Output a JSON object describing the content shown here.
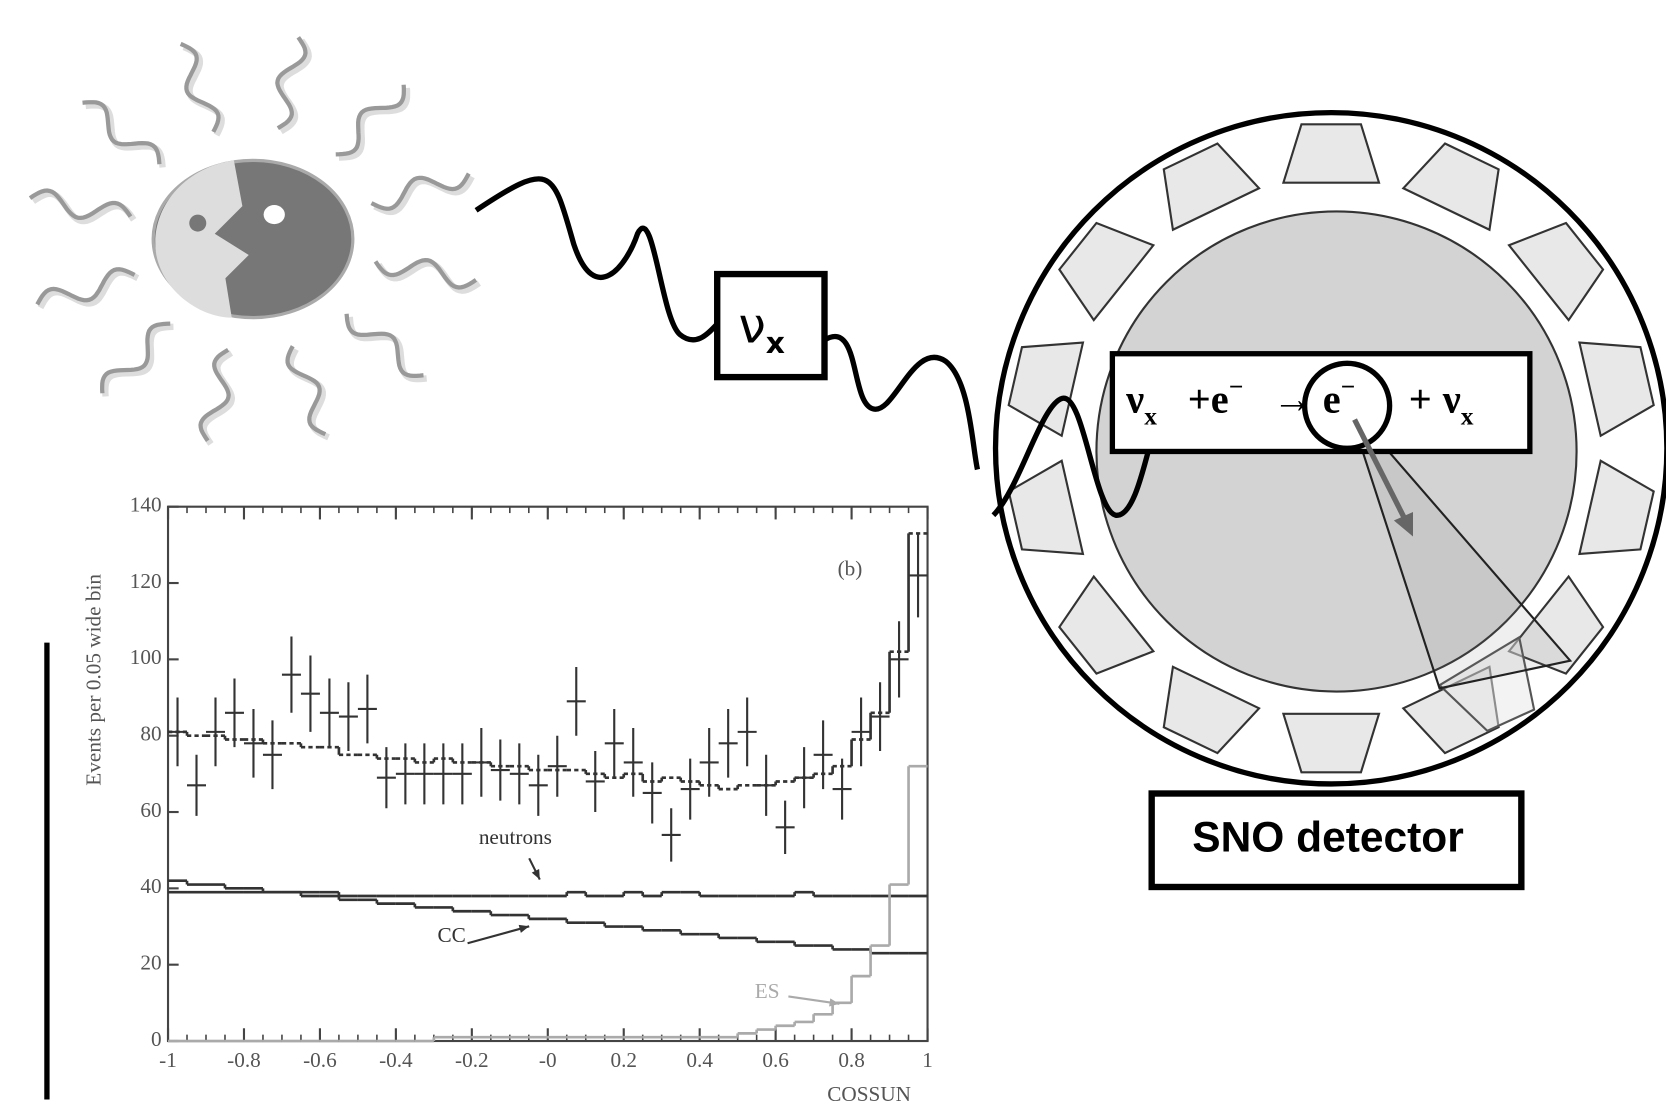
{
  "neutrino_box": {
    "symbol": "ν",
    "subscript": "x"
  },
  "equation": [
    "ν",
    "x",
    "+e",
    "−",
    "→",
    "e",
    "−",
    "+",
    "ν",
    "x"
  ],
  "detector_label": "SNO detector",
  "chart_data": {
    "type": "histogram",
    "annotation": "(b)",
    "x_label": "COSSUN",
    "y_label": "Events per 0.05 wide bin",
    "xlim": [
      -1,
      1
    ],
    "ylim": [
      0,
      140
    ],
    "xticks": [
      -1,
      -0.8,
      -0.6,
      -0.4,
      -0.2,
      {
        "value": 0,
        "label": "-0"
      },
      0.2,
      0.4,
      0.6,
      0.8,
      1
    ],
    "yticks": [
      0,
      20,
      40,
      60,
      80,
      100,
      120,
      140
    ],
    "bins": [
      -1,
      -0.95,
      -0.9,
      -0.85,
      -0.8,
      -0.75,
      -0.7,
      -0.65,
      -0.6,
      -0.55,
      -0.5,
      -0.45,
      -0.4,
      -0.35,
      -0.3,
      -0.25,
      -0.2,
      -0.15,
      -0.1,
      -0.05,
      0,
      0.05,
      0.1,
      0.15,
      0.2,
      0.25,
      0.3,
      0.35,
      0.4,
      0.45,
      0.5,
      0.55,
      0.6,
      0.65,
      0.7,
      0.75,
      0.8,
      0.85,
      0.9,
      0.95,
      1
    ],
    "data": {
      "color": "#333333",
      "values": [
        81,
        67,
        81,
        86,
        78,
        75,
        96,
        91,
        86,
        85,
        87,
        69,
        70,
        70,
        70,
        70,
        73,
        71,
        70,
        67,
        72,
        89,
        68,
        78,
        73,
        65,
        54,
        66,
        73,
        78,
        81,
        67,
        56,
        69,
        75,
        66,
        81,
        85,
        100,
        122
      ],
      "errors": [
        9,
        8,
        9,
        9,
        9,
        9,
        10,
        10,
        9,
        9,
        9,
        8,
        8,
        8,
        8,
        8,
        9,
        8,
        8,
        8,
        8,
        9,
        8,
        9,
        9,
        8,
        7,
        8,
        9,
        9,
        9,
        8,
        7,
        8,
        9,
        8,
        9,
        9,
        10,
        11
      ]
    },
    "series": [
      {
        "name": "neutrons",
        "color": "#333333",
        "values": [
          39,
          39,
          39,
          39,
          39,
          39,
          39,
          39,
          39,
          38,
          38,
          38,
          38,
          38,
          38,
          38,
          38,
          38,
          38,
          38,
          38,
          39,
          38,
          38,
          39,
          38,
          39,
          39,
          38,
          38,
          38,
          38,
          38,
          39,
          38,
          38,
          38,
          38,
          38,
          38
        ]
      },
      {
        "name": "CC",
        "color": "#333333",
        "values": [
          42,
          41,
          41,
          40,
          40,
          39,
          39,
          38,
          38,
          37,
          37,
          36,
          36,
          35,
          35,
          34,
          34,
          33,
          33,
          32,
          32,
          31,
          31,
          30,
          30,
          29,
          29,
          28,
          28,
          27,
          27,
          26,
          26,
          25,
          25,
          24,
          24,
          23,
          23,
          23
        ]
      },
      {
        "name": "ES",
        "color": "#aaaaaa",
        "values": [
          0,
          0,
          0,
          0,
          0,
          0,
          0,
          0,
          0,
          0,
          0,
          0,
          0,
          0,
          1,
          1,
          1,
          1,
          1,
          1,
          1,
          1,
          1,
          1,
          1,
          1,
          1,
          1,
          1,
          1,
          2,
          3,
          4,
          5,
          7,
          10,
          17,
          25,
          41,
          72
        ]
      },
      {
        "color": "#333333",
        "dashed": true,
        "values": [
          81,
          80,
          80,
          79,
          79,
          78,
          78,
          77,
          77,
          75,
          75,
          74,
          74,
          73,
          74,
          73,
          73,
          72,
          72,
          71,
          71,
          71,
          70,
          69,
          70,
          68,
          69,
          68,
          67,
          66,
          67,
          67,
          68,
          69,
          70,
          72,
          79,
          86,
          102,
          133
        ]
      }
    ]
  }
}
